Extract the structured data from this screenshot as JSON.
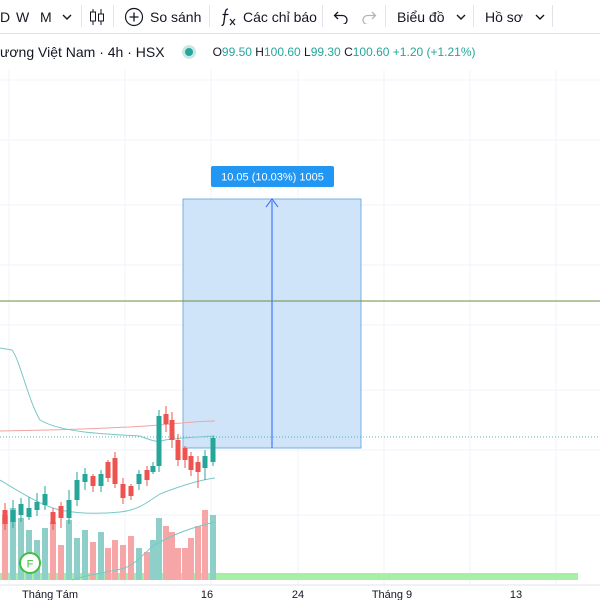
{
  "toolbar": {
    "interval_d": "D",
    "interval_w": "W",
    "interval_m": "M",
    "compare_label": "So sánh",
    "indicators_label": "Các chỉ báo",
    "chart_menu_label": "Biểu đồ",
    "profile_menu_label": "Hồ sơ",
    "icons": {
      "chevron": "chevron-down-icon",
      "candles": "candlestick-icon",
      "compare": "plus-circle-icon",
      "indicators": "fx-icon",
      "undo": "undo-icon",
      "redo": "redo-icon"
    }
  },
  "legend": {
    "symbol_title": "ương Việt Nam · 4h · HSX",
    "open_label": "O",
    "open_value": "99.50",
    "high_label": "H",
    "high_value": "100.60",
    "low_label": "L",
    "low_value": "99.30",
    "close_label": "C",
    "close_value": "100.60",
    "change": "+1.20 (+1.21%)"
  },
  "measure": {
    "label": "10.05 (10.03%) 1005"
  },
  "earnings_marker": "F",
  "colors": {
    "up": "#26a69a",
    "down": "#ef5350",
    "measure_fill": "#cfe4f8",
    "measure_line": "#2962ff",
    "measure_label_bg": "#2196f3",
    "h_line": "#6b8f3f",
    "bb_line": "#7ac7c5",
    "ma_line": "#f0a3a3",
    "volume_bar_green": "#8ed0c9",
    "volume_bar_red": "#f6a6a6",
    "earnings_band": "#a6f0a6"
  },
  "chart_data": {
    "type": "candlestick",
    "timeframe": "4h",
    "x_tick_labels": [
      "Tháng Tám",
      "16",
      "24",
      "Tháng 9",
      "13"
    ]
  }
}
